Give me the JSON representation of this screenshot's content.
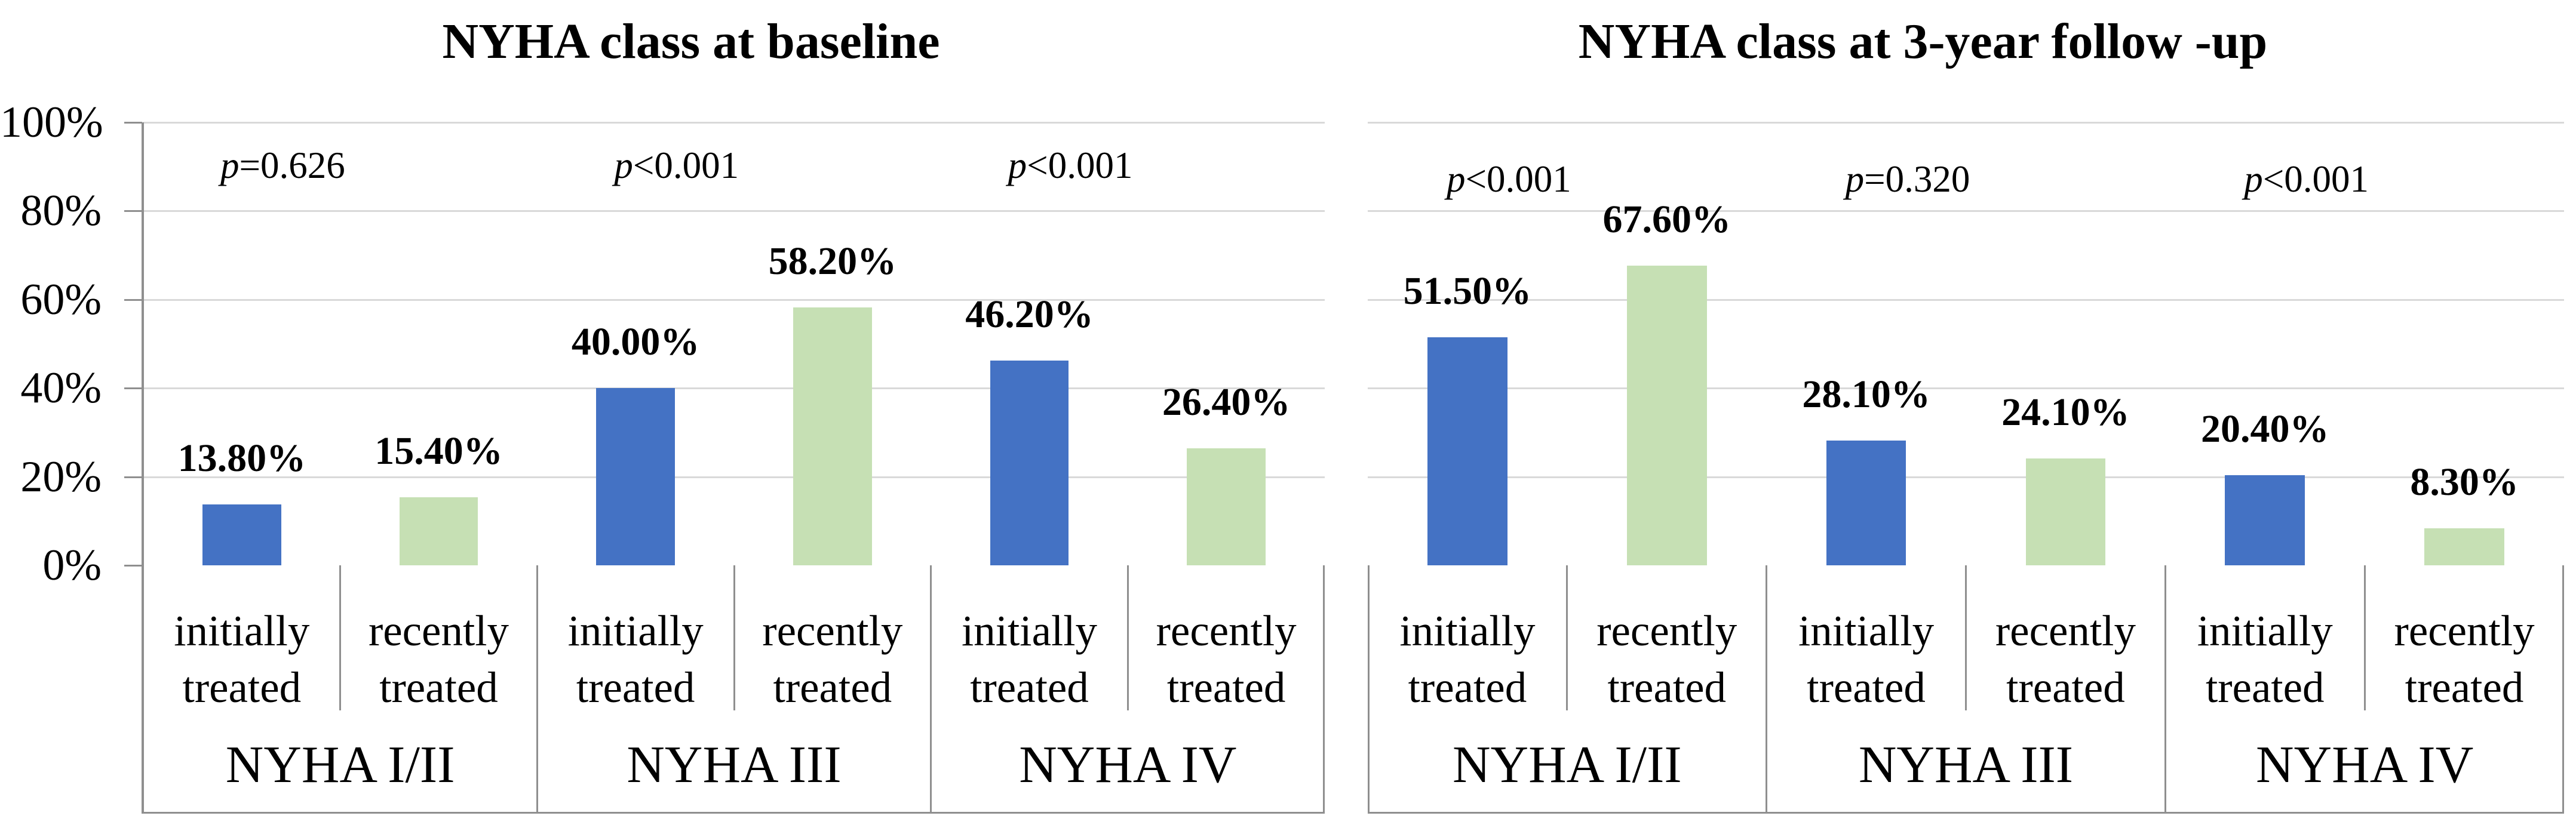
{
  "figure": {
    "background": "#FFFFFF",
    "colors": {
      "bar_initially_treated": "#4472C4",
      "bar_recently_treated": "#C6E0B4",
      "gridline": "#D9D9D9",
      "axis_line": "#8F8F8F",
      "zero_axis_line": "#A6A6A6",
      "text": "#000000"
    },
    "y_axis_ticks": [
      "100%",
      "80%",
      "60%",
      "40%",
      "20%",
      "0%"
    ]
  },
  "chart_data": [
    {
      "type": "bar",
      "title": "NYHA class at baseline",
      "ylabel": "",
      "xlabel": "",
      "ylim": [
        0,
        100
      ],
      "y_tick_step": 20,
      "grid": true,
      "legend_position": "none",
      "y_axis_labels_visible": true,
      "sub_category_lines": [
        [
          "initially",
          "treated"
        ],
        [
          "recently",
          "treated"
        ]
      ],
      "series_names": [
        "initially treated",
        "recently treated"
      ],
      "groups": [
        {
          "label": "NYHA I/II",
          "p_value": "p=0.626",
          "bars": [
            {
              "series": "initially treated",
              "value": 13.8,
              "label": "13.80%"
            },
            {
              "series": "recently treated",
              "value": 15.4,
              "label": "15.40%"
            }
          ]
        },
        {
          "label": "NYHA III",
          "p_value": "p<0.001",
          "bars": [
            {
              "series": "initially treated",
              "value": 40.0,
              "label": "40.00%"
            },
            {
              "series": "recently treated",
              "value": 58.2,
              "label": "58.20%"
            }
          ]
        },
        {
          "label": "NYHA IV",
          "p_value": "p<0.001",
          "bars": [
            {
              "series": "initially treated",
              "value": 46.2,
              "label": "46.20%"
            },
            {
              "series": "recently treated",
              "value": 26.4,
              "label": "26.40%"
            }
          ]
        }
      ]
    },
    {
      "type": "bar",
      "title": "NYHA class at 3-year follow -up",
      "ylabel": "",
      "xlabel": "",
      "ylim": [
        0,
        100
      ],
      "y_tick_step": 20,
      "grid": true,
      "legend_position": "none",
      "y_axis_labels_visible": false,
      "sub_category_lines": [
        [
          "initially",
          "treated"
        ],
        [
          "recently",
          "treated"
        ]
      ],
      "series_names": [
        "initially treated",
        "recently treated"
      ],
      "groups": [
        {
          "label": "NYHA I/II",
          "p_value": "p<0.001",
          "bars": [
            {
              "series": "initially treated",
              "value": 51.5,
              "label": "51.50%"
            },
            {
              "series": "recently treated",
              "value": 67.6,
              "label": "67.60%"
            }
          ]
        },
        {
          "label": "NYHA III",
          "p_value": "p=0.320",
          "bars": [
            {
              "series": "initially treated",
              "value": 28.1,
              "label": "28.10%"
            },
            {
              "series": "recently treated",
              "value": 24.1,
              "label": "24.10%"
            }
          ]
        },
        {
          "label": "NYHA IV",
          "p_value": "p<0.001",
          "bars": [
            {
              "series": "initially treated",
              "value": 20.4,
              "label": "20.40%"
            },
            {
              "series": "recently treated",
              "value": 8.3,
              "label": "8.30%"
            }
          ]
        }
      ]
    }
  ]
}
